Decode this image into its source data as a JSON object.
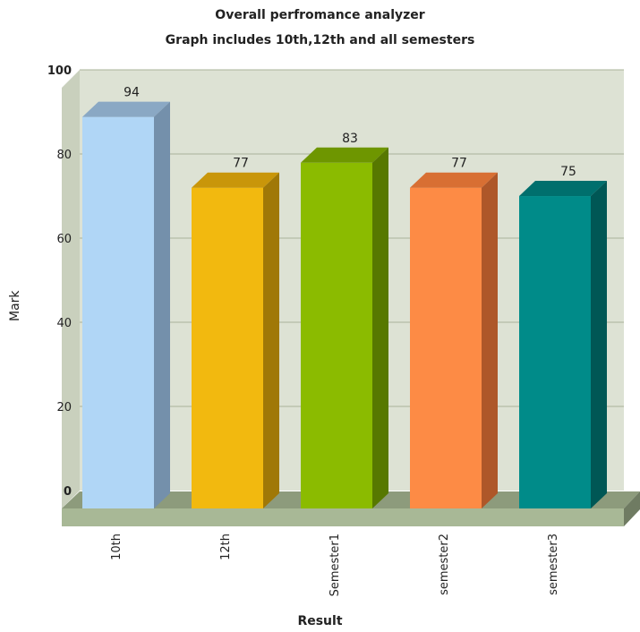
{
  "chart_data": {
    "type": "bar",
    "title": "Overall perfromance analyzer",
    "subtitle": "Graph includes 10th,12th and all semesters",
    "xlabel": "Result",
    "ylabel": "Mark",
    "categories": [
      "10th",
      "12th",
      "Semester1",
      "semester2",
      "semester3"
    ],
    "values": [
      94,
      77,
      83,
      77,
      75
    ],
    "data_labels": [
      "94",
      "77",
      "83",
      "77",
      "75"
    ],
    "y_ticks": [
      "0",
      "20",
      "40",
      "60",
      "80",
      "100"
    ],
    "ylim": [
      0,
      100
    ],
    "grid": true,
    "legend": "none",
    "style": "3d",
    "colors": {
      "plot_background": "#dde2d4",
      "floor": "#a8b896",
      "gridline": "#a9b39a",
      "bars": [
        {
          "front": "#b0d6f6",
          "top": "#8aa8c4",
          "side": "#7490ab"
        },
        {
          "front": "#f2b90f",
          "top": "#c9960a",
          "side": "#a07807"
        },
        {
          "front": "#8bbb00",
          "top": "#6e9600",
          "side": "#577800"
        },
        {
          "front": "#fd8b45",
          "top": "#d86f33",
          "side": "#ae5729"
        },
        {
          "front": "#008b89",
          "top": "#006f6d",
          "side": "#005755"
        }
      ]
    }
  }
}
